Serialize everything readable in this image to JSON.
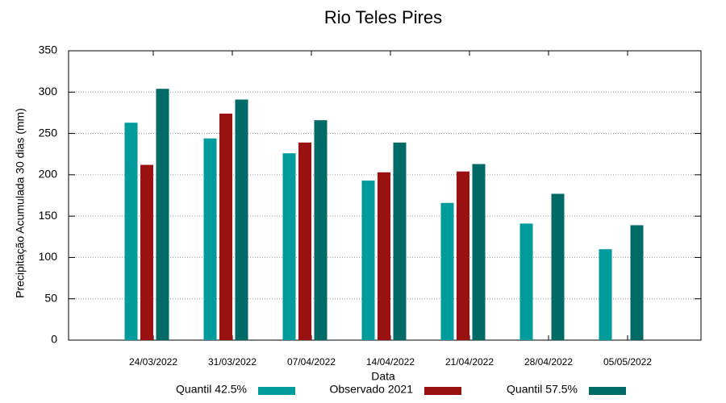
{
  "chart_data": {
    "type": "bar",
    "title": "Rio Teles Pires",
    "x_label": "Data",
    "y_label": "Precipitação Acumulada 30 dias (mm)",
    "categories": [
      "24/03/2022",
      "31/03/2022",
      "07/04/2022",
      "14/04/2022",
      "21/04/2022",
      "28/04/2022",
      "05/05/2022"
    ],
    "series": [
      {
        "name": "Quantil 42.5%",
        "color": "#009b9b",
        "values": [
          263,
          244,
          226,
          193,
          166,
          141,
          110
        ]
      },
      {
        "name": "Observado 2021",
        "color": "#991111",
        "values": [
          212,
          274,
          239,
          203,
          204,
          null,
          null
        ]
      },
      {
        "name": "Quantil 57.5%",
        "color": "#006a66",
        "values": [
          304,
          291,
          266,
          239,
          213,
          177,
          139
        ]
      }
    ],
    "ylim": [
      0,
      350
    ],
    "yticks": [
      0,
      50,
      100,
      150,
      200,
      250,
      300,
      350
    ],
    "grid": true
  }
}
